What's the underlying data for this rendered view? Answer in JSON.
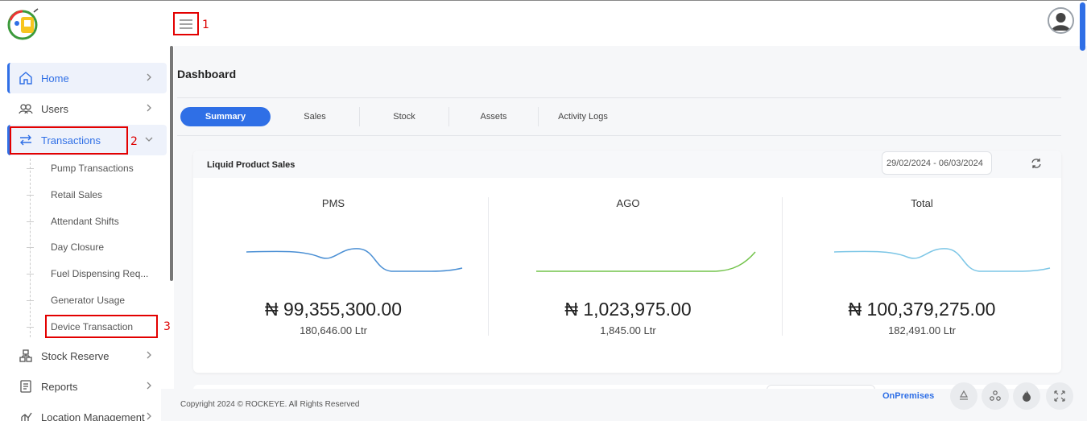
{
  "annotations": {
    "one": "1",
    "two": "2",
    "three": "3"
  },
  "sidebar": {
    "items": [
      {
        "label": "Home",
        "icon": "home-icon"
      },
      {
        "label": "Users",
        "icon": "users-icon"
      },
      {
        "label": "Transactions",
        "icon": "transfer-icon"
      },
      {
        "label": "Stock Reserve",
        "icon": "stock-icon"
      },
      {
        "label": "Reports",
        "icon": "report-icon"
      },
      {
        "label": "Location Management",
        "icon": "location-icon"
      }
    ],
    "sub_items": [
      "Pump Transactions",
      "Retail Sales",
      "Attendant Shifts",
      "Day Closure",
      "Fuel Dispensing Req...",
      "Generator Usage",
      "Device Transaction"
    ]
  },
  "main": {
    "title": "Dashboard",
    "tabs": [
      "Summary",
      "Sales",
      "Stock",
      "Assets",
      "Activity Logs"
    ],
    "active_tab": "Summary"
  },
  "card": {
    "title": "Liquid Product Sales",
    "date_range": "29/02/2024 - 06/03/2024",
    "columns": [
      {
        "label": "PMS",
        "amount": "₦ 99,355,300.00",
        "qty": "180,646.00 Ltr",
        "color": "#4a8fd4"
      },
      {
        "label": "AGO",
        "amount": "₦ 1,023,975.00",
        "qty": "1,845.00 Ltr",
        "color": "#72c34a"
      },
      {
        "label": "Total",
        "amount": "₦ 100,379,275.00",
        "qty": "182,491.00 Ltr",
        "color": "#7cc6e6"
      }
    ]
  },
  "footer": {
    "copyright": "Copyright 2024 © ROCKEYE. All Rights Reserved",
    "mode": "OnPremises",
    "buttons": [
      "recycle-icon",
      "nodes-icon",
      "fire-icon",
      "fullscreen-icon"
    ]
  },
  "colors": {
    "accent": "#2f6fe6",
    "highlight": "#e30000"
  }
}
